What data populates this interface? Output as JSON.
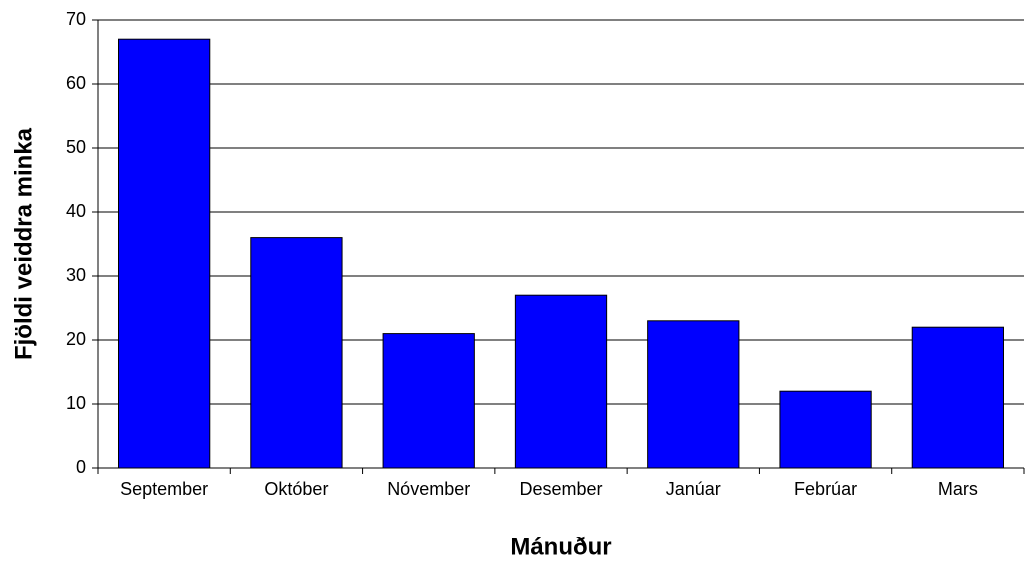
{
  "chart_data": {
    "type": "bar",
    "x_label": "Mánuður",
    "y_label": "Fjöldi veiddra minka",
    "categories": [
      "September",
      "Október",
      "Nóvember",
      "Desember",
      "Janúar",
      "Febrúar",
      "Mars"
    ],
    "values": [
      67,
      36,
      21,
      27,
      23,
      12,
      22
    ],
    "color": "#0000ff",
    "ylim": [
      0,
      70
    ],
    "yticks": [
      0,
      10,
      20,
      30,
      40,
      50,
      60,
      70
    ],
    "grid": true
  }
}
